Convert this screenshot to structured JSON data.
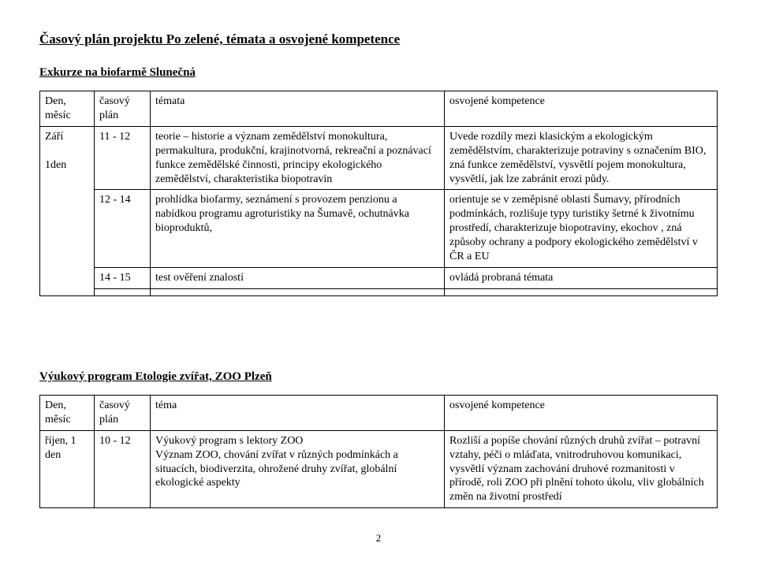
{
  "doc": {
    "title": "Časový plán  projektu Po zelené, témata a osvojené kompetence",
    "page_number": "2"
  },
  "section1": {
    "heading": "Exkurze na biofarmě Slunečná",
    "header": {
      "col1": "Den, měsíc",
      "col2": "časový plán",
      "col3": "témata",
      "col4": "osvojené kompetence"
    },
    "r1": {
      "dm": "Září\n\n1den",
      "plan": "11 - 12",
      "topic": "teorie – historie a význam zemědělství monokultura, permakultura, produkční, krajinotvorná, rekreační a poznávací funkce zemědělské činnosti, principy ekologického zemědělství, charakteristika biopotravin",
      "comp": "Uvede rozdíly mezi klasickým a ekologickým zemědělstvím, charakterizuje potraviny s označením BIO, zná funkce zemědělství, vysvětlí pojem monokultura, vysvětlí, jak lze zabránit erozi půdy."
    },
    "r2": {
      "plan": "12 - 14",
      "topic": "prohlídka biofarmy, seznámení s provozem penzionu a nabídkou programu agroturistiky na Šumavě, ochutnávka bioproduktů,",
      "comp": "orientuje se v zeměpisné oblasti Šumavy, přírodních podmínkách, rozlišuje typy turistiky šetrné k životnímu prostředí, charakterizuje biopotraviny, ekochov , zná způsoby ochrany  a podpory ekologického zemědělství v ČR a EU"
    },
    "r3": {
      "plan": "14 - 15",
      "topic": "test ověření znalostí",
      "comp": "ovládá probraná témata"
    }
  },
  "section2": {
    "heading": "Výukový program Etologie zvířat, ZOO Plzeň",
    "header": {
      "col1": "Den, měsíc",
      "col2": "časový plán",
      "col3": "téma",
      "col4": "osvojené kompetence"
    },
    "r1": {
      "dm": "říjen, 1 den",
      "plan": "10 - 12",
      "topic": "Výukový program s lektory ZOO\nVýznam ZOO, chování zvířat v různých podmínkách a situacích, biodiverzita, ohrožené druhy zvířat, globální ekologické aspekty",
      "comp": "Rozliší a popíše chování různých druhů zvířat – potravní vztahy, péči o mláďata, vnitrodruhovou komunikaci, vysvětlí význam zachování druhové rozmanitosti v přírodě,  roli ZOO při plnění tohoto úkolu, vliv globálních změn na životní prostředí"
    }
  }
}
